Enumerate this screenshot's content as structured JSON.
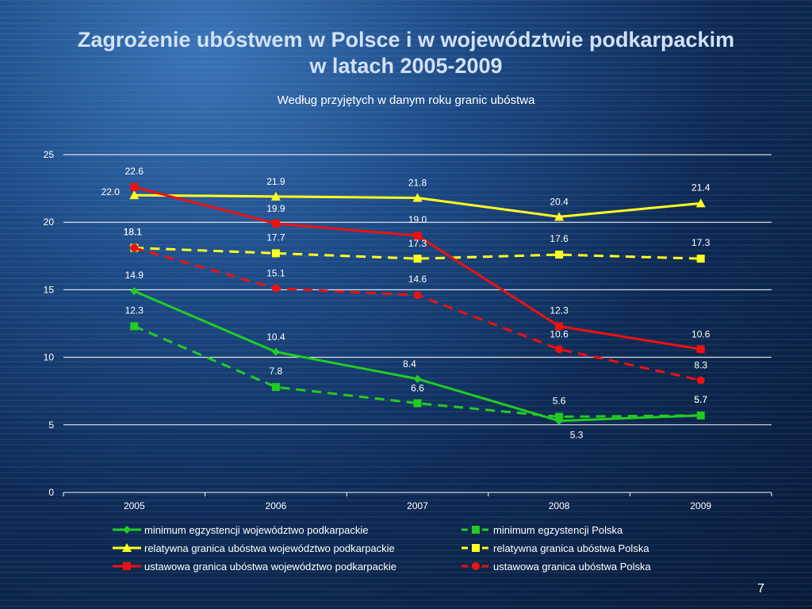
{
  "slide": {
    "title_line1": "Zagrożenie ubóstwem w Polsce i w województwie podkarpackim",
    "title_line2": "w latach 2005-2009",
    "page_number": "7"
  },
  "chart_data": {
    "type": "line",
    "subtitle": "Według przyjętych w danym roku granic ubóstwa",
    "categories": [
      "2005",
      "2006",
      "2007",
      "2008",
      "2009"
    ],
    "ylim": [
      0,
      25
    ],
    "yticks": [
      0,
      5,
      10,
      15,
      20,
      25
    ],
    "grid": true,
    "legend_position": "bottom",
    "series": [
      {
        "name": "minimum egzystencji województwo podkarpackie",
        "values": [
          14.9,
          10.4,
          8.4,
          5.3,
          5.7
        ],
        "color": "#22cc22",
        "dash": false,
        "marker": "diamond",
        "labels": [
          "14.9",
          "10.4",
          "8.4",
          "5.3",
          "5.7"
        ]
      },
      {
        "name": "minimum egzystencji Polska",
        "values": [
          12.3,
          7.8,
          6.6,
          5.6,
          5.7
        ],
        "color": "#22cc22",
        "dash": true,
        "marker": "square",
        "labels": [
          "12.3",
          "7.8",
          "6.6",
          "5.6",
          "5.7"
        ]
      },
      {
        "name": "relatywna granica ubóstwa województwo podkarpackie",
        "values": [
          22.0,
          21.9,
          21.8,
          20.4,
          21.4
        ],
        "color": "#ffff22",
        "dash": false,
        "marker": "triangle",
        "labels": [
          "22.0",
          "21.9",
          "21.8",
          "20.4",
          "21.4"
        ]
      },
      {
        "name": "relatywna granica ubóstwa Polska",
        "values": [
          18.1,
          17.7,
          17.3,
          17.6,
          17.3
        ],
        "color": "#ffff22",
        "dash": true,
        "marker": "square",
        "labels": [
          "18.1",
          "17.7",
          "17.3",
          "17.6",
          "17.3"
        ]
      },
      {
        "name": "ustawowa granica ubóstwa województwo podkarpackie",
        "values": [
          22.6,
          19.9,
          19.0,
          12.3,
          10.6
        ],
        "color": "#ee1111",
        "dash": false,
        "marker": "square",
        "labels": [
          "22.6",
          "19.9",
          "19.0",
          "12.3",
          "10.6"
        ]
      },
      {
        "name": "ustawowa granica ubóstwa Polska",
        "values": [
          18.1,
          15.1,
          14.6,
          10.6,
          8.3
        ],
        "color": "#ee1111",
        "dash": true,
        "marker": "circle",
        "labels": [
          "18.1",
          "15.1",
          "14.6",
          "10.6",
          "8.3"
        ]
      }
    ]
  }
}
